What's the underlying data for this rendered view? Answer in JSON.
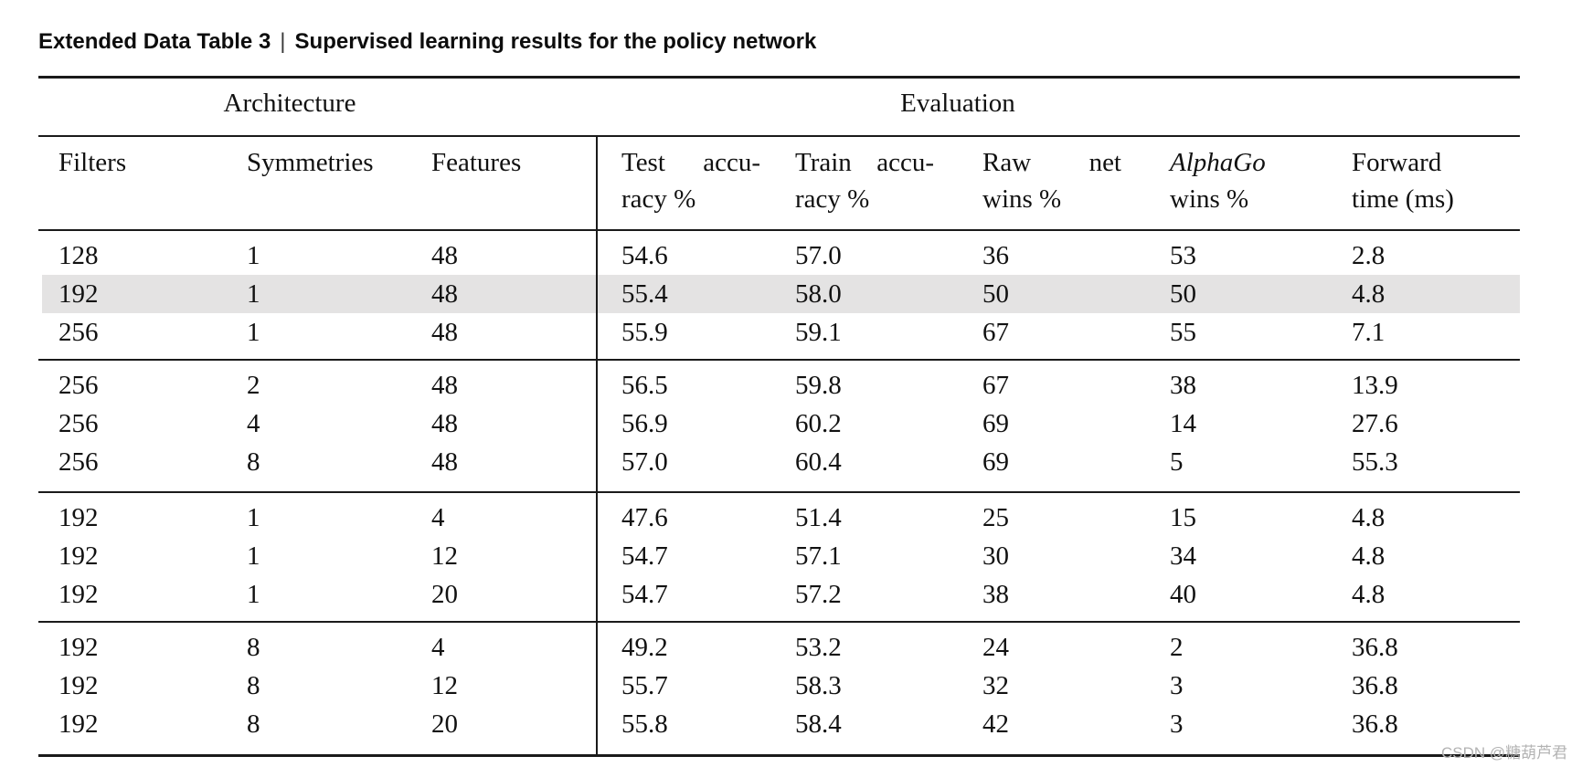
{
  "title": {
    "label": "Extended Data Table 3",
    "separator": "|",
    "subtitle": "Supervised learning results for the policy network"
  },
  "table": {
    "group_headers": {
      "architecture": "Architecture",
      "evaluation": "Evaluation"
    },
    "columns": {
      "filters": "Filters",
      "symmetries": "Symmetries",
      "features": "Features",
      "test_l1a": "Test",
      "test_l1b": "accu-",
      "test_l2": "racy %",
      "train_l1a": "Train",
      "train_l1b": "accu-",
      "train_l2": "racy %",
      "raw_l1a": "Raw",
      "raw_l1b": "net",
      "raw_l2": "wins %",
      "alphago_l1": "AlphaGo",
      "alphago_l2": "wins %",
      "forward_l1": "Forward",
      "forward_l2": "time (ms)"
    },
    "groups": [
      {
        "rows": [
          {
            "cells": [
              "128",
              "1",
              "48",
              "54.6",
              "57.0",
              "36",
              "53",
              "2.8"
            ],
            "highlight": false
          },
          {
            "cells": [
              "192",
              "1",
              "48",
              "55.4",
              "58.0",
              "50",
              "50",
              "4.8"
            ],
            "highlight": true
          },
          {
            "cells": [
              "256",
              "1",
              "48",
              "55.9",
              "59.1",
              "67",
              "55",
              "7.1"
            ],
            "highlight": false
          }
        ]
      },
      {
        "rows": [
          {
            "cells": [
              "256",
              "2",
              "48",
              "56.5",
              "59.8",
              "67",
              "38",
              "13.9"
            ],
            "highlight": false
          },
          {
            "cells": [
              "256",
              "4",
              "48",
              "56.9",
              "60.2",
              "69",
              "14",
              "27.6"
            ],
            "highlight": false
          },
          {
            "cells": [
              "256",
              "8",
              "48",
              "57.0",
              "60.4",
              "69",
              "5",
              "55.3"
            ],
            "highlight": false
          }
        ]
      },
      {
        "rows": [
          {
            "cells": [
              "192",
              "1",
              "4",
              "47.6",
              "51.4",
              "25",
              "15",
              "4.8"
            ],
            "highlight": false
          },
          {
            "cells": [
              "192",
              "1",
              "12",
              "54.7",
              "57.1",
              "30",
              "34",
              "4.8"
            ],
            "highlight": false
          },
          {
            "cells": [
              "192",
              "1",
              "20",
              "54.7",
              "57.2",
              "38",
              "40",
              "4.8"
            ],
            "highlight": false
          }
        ]
      },
      {
        "rows": [
          {
            "cells": [
              "192",
              "8",
              "4",
              "49.2",
              "53.2",
              "24",
              "2",
              "36.8"
            ],
            "highlight": false
          },
          {
            "cells": [
              "192",
              "8",
              "12",
              "55.7",
              "58.3",
              "32",
              "3",
              "36.8"
            ],
            "highlight": false
          },
          {
            "cells": [
              "192",
              "8",
              "20",
              "55.8",
              "58.4",
              "42",
              "3",
              "36.8"
            ],
            "highlight": false
          }
        ]
      }
    ]
  },
  "watermark": "CSDN @糖葫芦君",
  "colors": {
    "highlight": "#e4e3e3",
    "rule": "#1a1a1a",
    "text": "#111111",
    "watermark": "#b3b3b3"
  }
}
